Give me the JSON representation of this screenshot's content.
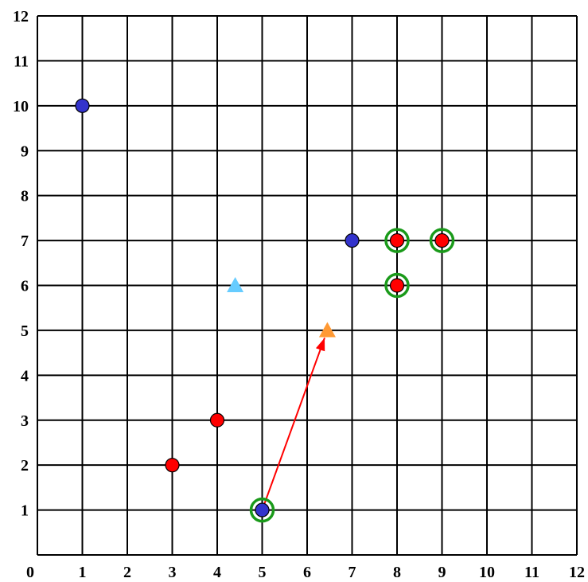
{
  "chart_data": {
    "type": "scatter",
    "title": "",
    "xlabel": "",
    "ylabel": "",
    "xlim": [
      0,
      12
    ],
    "ylim": [
      0,
      12
    ],
    "grid": true,
    "x_tick_labels": [
      "0",
      "1",
      "2",
      "3",
      "4",
      "5",
      "6",
      "7",
      "8",
      "9",
      "10",
      "11",
      "12"
    ],
    "y_tick_labels": [
      "1",
      "2",
      "3",
      "4",
      "5",
      "6",
      "7",
      "8",
      "9",
      "10",
      "11",
      "12"
    ],
    "series": [
      {
        "color": "#3333cc",
        "marker": "circle",
        "points": [
          [
            1,
            10
          ],
          [
            7,
            7
          ],
          [
            5,
            1
          ]
        ]
      },
      {
        "color": "#ff0000",
        "marker": "circle",
        "points": [
          [
            3,
            2
          ],
          [
            4,
            3
          ],
          [
            8,
            7
          ],
          [
            9,
            7
          ],
          [
            8,
            6
          ]
        ]
      },
      {
        "color": "#66ccff",
        "marker": "triangle",
        "points": [
          [
            4.4,
            6
          ]
        ]
      },
      {
        "color": "#ff9933",
        "marker": "triangle",
        "points": [
          [
            6.45,
            5
          ]
        ]
      }
    ],
    "highlight_rings": {
      "color": "#1a9a1a",
      "points": [
        [
          5,
          1
        ],
        [
          8,
          7
        ],
        [
          9,
          7
        ],
        [
          8,
          6
        ]
      ]
    },
    "arrows": [
      {
        "color": "#ff0000",
        "from": [
          5,
          1
        ],
        "to": [
          6.45,
          5
        ]
      }
    ]
  }
}
